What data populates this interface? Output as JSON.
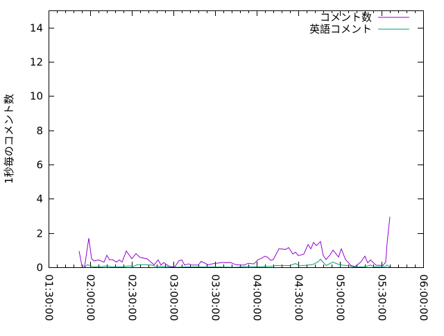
{
  "chart_data": {
    "type": "line",
    "title": "",
    "xlabel": "",
    "ylabel": "1秒毎のコメント数",
    "xlim": [
      "01:30:00",
      "06:00:00"
    ],
    "ylim": [
      0,
      15
    ],
    "x_ticks": [
      "01:30:00",
      "02:00:00",
      "02:30:00",
      "03:00:00",
      "03:30:00",
      "04:00:00",
      "04:30:00",
      "05:00:00",
      "05:30:00",
      "06:00:00"
    ],
    "y_ticks": [
      "0",
      "2",
      "4",
      "6",
      "8",
      "10",
      "12",
      "14"
    ],
    "y_tick_values": [
      0,
      2,
      4,
      6,
      8,
      10,
      12,
      14
    ],
    "grid": false,
    "legend_position": "top-right",
    "series": [
      {
        "name": "コメント数",
        "color": "#9400d3",
        "points": [
          [
            "01:52",
            0.95
          ],
          [
            "01:54",
            0.1
          ],
          [
            "01:56",
            0.05
          ],
          [
            "01:59",
            1.7
          ],
          [
            "02:01",
            0.5
          ],
          [
            "02:03",
            0.37
          ],
          [
            "02:06",
            0.43
          ],
          [
            "02:10",
            0.3
          ],
          [
            "02:12",
            0.7
          ],
          [
            "02:14",
            0.43
          ],
          [
            "02:16",
            0.45
          ],
          [
            "02:19",
            0.3
          ],
          [
            "02:21",
            0.43
          ],
          [
            "02:23",
            0.3
          ],
          [
            "02:26",
            0.95
          ],
          [
            "02:30",
            0.5
          ],
          [
            "02:33",
            0.8
          ],
          [
            "02:36",
            0.57
          ],
          [
            "02:41",
            0.5
          ],
          [
            "02:46",
            0.14
          ],
          [
            "02:49",
            0.43
          ],
          [
            "02:51",
            0.13
          ],
          [
            "02:53",
            0.27
          ],
          [
            "02:57",
            0.05
          ],
          [
            "03:01",
            0.03
          ],
          [
            "03:04",
            0.38
          ],
          [
            "03:06",
            0.43
          ],
          [
            "03:08",
            0.13
          ],
          [
            "03:11",
            0.2
          ],
          [
            "03:13",
            0.13
          ],
          [
            "03:18",
            0.13
          ],
          [
            "03:20",
            0.35
          ],
          [
            "03:25",
            0.14
          ],
          [
            "03:29",
            0.22
          ],
          [
            "03:35",
            0.27
          ],
          [
            "03:41",
            0.28
          ],
          [
            "03:45",
            0.15
          ],
          [
            "03:48",
            0.13
          ],
          [
            "03:51",
            0.13
          ],
          [
            "03:54",
            0.23
          ],
          [
            "03:58",
            0.2
          ],
          [
            "04:01",
            0.45
          ],
          [
            "04:03",
            0.5
          ],
          [
            "04:06",
            0.65
          ],
          [
            "04:08",
            0.58
          ],
          [
            "04:10",
            0.4
          ],
          [
            "04:12",
            0.45
          ],
          [
            "04:16",
            1.08
          ],
          [
            "04:21",
            1.04
          ],
          [
            "04:23",
            1.15
          ],
          [
            "04:26",
            0.78
          ],
          [
            "04:28",
            0.88
          ],
          [
            "04:30",
            0.68
          ],
          [
            "04:34",
            0.77
          ],
          [
            "04:37",
            1.33
          ],
          [
            "04:39",
            1.08
          ],
          [
            "04:41",
            1.45
          ],
          [
            "04:43",
            1.27
          ],
          [
            "04:46",
            1.5
          ],
          [
            "04:48",
            0.68
          ],
          [
            "04:50",
            0.45
          ],
          [
            "04:53",
            0.74
          ],
          [
            "04:55",
            1.0
          ],
          [
            "04:59",
            0.6
          ],
          [
            "05:01",
            1.08
          ],
          [
            "05:04",
            0.45
          ],
          [
            "05:08",
            0.1
          ],
          [
            "05:11",
            0.04
          ],
          [
            "05:15",
            0.31
          ],
          [
            "05:18",
            0.65
          ],
          [
            "05:20",
            0.26
          ],
          [
            "05:22",
            0.43
          ],
          [
            "05:26",
            0.12
          ],
          [
            "05:31",
            0.11
          ],
          [
            "05:33",
            0.31
          ],
          [
            "05:34",
            1.42
          ],
          [
            "05:36",
            2.95
          ]
        ]
      },
      {
        "name": "英語コメント",
        "color": "#009e73",
        "points": [
          [
            "01:56",
            0.0
          ],
          [
            "01:58",
            0.15
          ],
          [
            "02:00",
            0.1
          ],
          [
            "02:02",
            0.03
          ],
          [
            "02:08",
            0.03
          ],
          [
            "02:12",
            0.08
          ],
          [
            "02:15",
            0.03
          ],
          [
            "02:24",
            0.03
          ],
          [
            "02:28",
            0.08
          ],
          [
            "02:31",
            0.05
          ],
          [
            "02:34",
            0.15
          ],
          [
            "02:38",
            0.15
          ],
          [
            "02:44",
            0.13
          ],
          [
            "02:47",
            0.06
          ],
          [
            "02:55",
            0.05
          ],
          [
            "03:00",
            0.0
          ],
          [
            "03:10",
            0.02
          ],
          [
            "03:30",
            0.02
          ],
          [
            "03:45",
            0.0
          ],
          [
            "03:54",
            0.05
          ],
          [
            "04:00",
            0.03
          ],
          [
            "04:10",
            0.05
          ],
          [
            "04:14",
            0.1
          ],
          [
            "04:24",
            0.1
          ],
          [
            "04:28",
            0.22
          ],
          [
            "04:31",
            0.08
          ],
          [
            "04:40",
            0.15
          ],
          [
            "04:44",
            0.3
          ],
          [
            "04:46",
            0.47
          ],
          [
            "04:50",
            0.1
          ],
          [
            "04:55",
            0.3
          ],
          [
            "04:58",
            0.2
          ],
          [
            "05:02",
            0.12
          ],
          [
            "05:06",
            0.1
          ],
          [
            "05:10",
            0.02
          ],
          [
            "05:18",
            0.02
          ],
          [
            "05:22",
            0.13
          ],
          [
            "05:25",
            0.02
          ],
          [
            "05:33",
            0.05
          ],
          [
            "05:34",
            0.13
          ],
          [
            "05:36",
            0.0
          ]
        ]
      }
    ]
  }
}
